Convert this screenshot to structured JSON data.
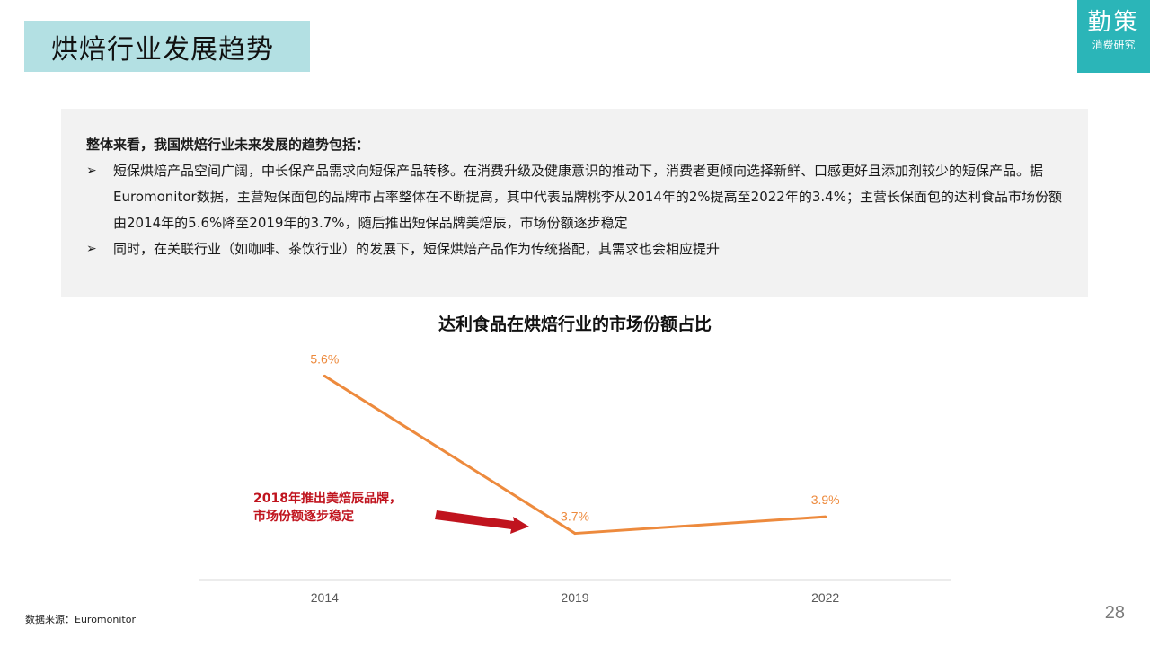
{
  "header": {
    "title": "烘焙行业发展趋势"
  },
  "logo": {
    "main": "勤策",
    "sub": "消费研究"
  },
  "summary": {
    "lead": "整体来看，我国烘焙行业未来发展的趋势包括：",
    "bullet_mark": "➢",
    "bullets": [
      "短保烘焙产品空间广阔，中长保产品需求向短保产品转移。在消费升级及健康意识的推动下，消费者更倾向选择新鲜、口感更好且添加剂较少的短保产品。据Euromonitor数据，主营短保面包的品牌市占率整体在不断提高，其中代表品牌桃李从2014年的2%提高至2022年的3.4%；主营长保面包的达利食品市场份额由2014年的5.6%降至2019年的3.7%，随后推出短保品牌美焙辰，市场份额逐步稳定",
      "同时，在关联行业（如咖啡、茶饮行业）的发展下，短保烘焙产品作为传统搭配，其需求也会相应提升"
    ]
  },
  "chart_data": {
    "type": "line",
    "title": "达利食品在烘焙行业的市场份额占比",
    "categories": [
      "2014",
      "2019",
      "2022"
    ],
    "values": [
      5.6,
      3.7,
      3.9
    ],
    "data_labels": [
      "5.6%",
      "3.7%",
      "3.9%"
    ],
    "ylim": [
      3.5,
      5.8
    ],
    "color": "#ed8a3d",
    "annotation": {
      "lines": [
        "2018年推出美焙辰品牌，",
        "市场份额逐步稳定"
      ],
      "color": "#c0141e"
    }
  },
  "footer": {
    "source": "数据来源：Euromonitor",
    "page": "28"
  }
}
